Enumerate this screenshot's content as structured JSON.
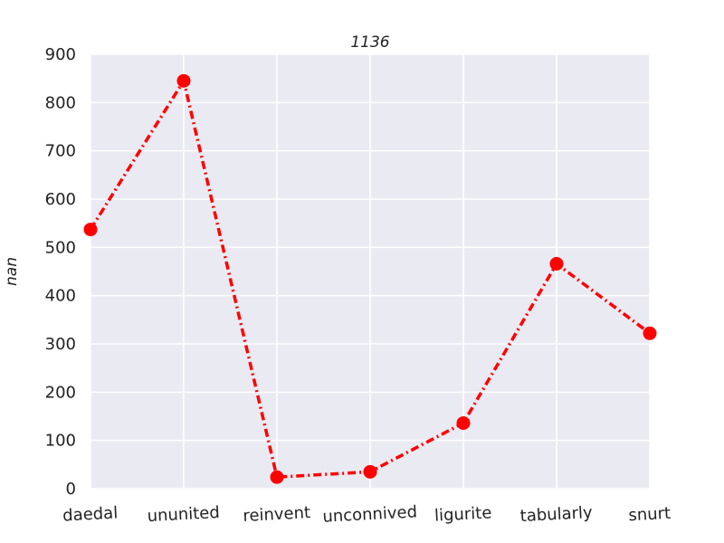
{
  "chart_data": {
    "type": "line",
    "title": "1136",
    "xlabel": "",
    "ylabel": "nan",
    "categories": [
      "daedal",
      "ununited",
      "reinvent",
      "unconnived",
      "ligurite",
      "tabularly",
      "snurt"
    ],
    "series": [
      {
        "values": [
          537,
          845,
          24,
          35,
          136,
          466,
          322
        ]
      }
    ],
    "ylim": [
      0,
      900
    ],
    "yticks": [
      0,
      100,
      200,
      300,
      400,
      500,
      600,
      700,
      800,
      900
    ],
    "grid": true,
    "line_style": "dash-dot",
    "marker": "circle",
    "colors": {
      "series": "#ff0000",
      "plot_background": "#eaeaf2",
      "grid": "#ffffff"
    }
  }
}
